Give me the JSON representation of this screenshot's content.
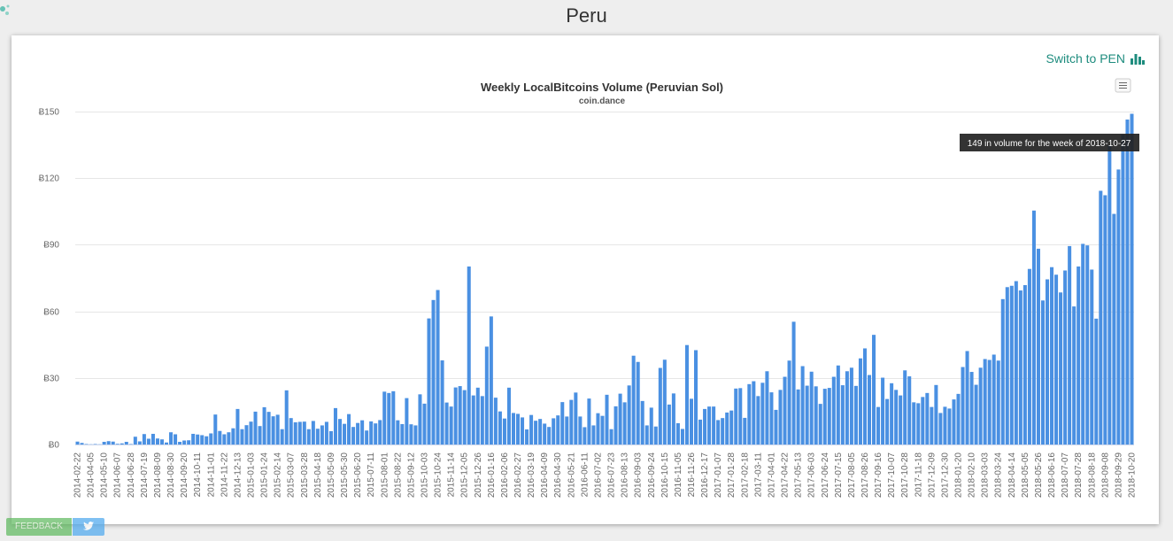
{
  "page": {
    "title": "Peru"
  },
  "controls": {
    "switch_label": "Switch to PEN",
    "feedback_label": "FEEDBACK"
  },
  "icons": {
    "switch": "bar-chart-icon",
    "menu": "hamburger-menu-icon",
    "twitter": "twitter-icon",
    "logo": "site-logo-icon"
  },
  "colors": {
    "bar": "#4a90e2",
    "accent": "#1e8c7e",
    "tooltip_bg": "#222222"
  },
  "tooltip": {
    "text": "149 in volume for the week of 2018-10-27"
  },
  "chart_data": {
    "type": "bar",
    "title": "Weekly LocalBitcoins Volume (Peruvian Sol)",
    "subtitle": "coin.dance",
    "xlabel": "",
    "ylabel": "",
    "ylim": [
      0,
      150
    ],
    "y_ticks": [
      0,
      30,
      60,
      90,
      120,
      150
    ],
    "y_tick_labels": [
      "Ƀ0",
      "Ƀ30",
      "Ƀ60",
      "Ƀ90",
      "Ƀ120",
      "Ƀ150"
    ],
    "grid": true,
    "start_date": "2014-02-22",
    "x_tick_labels": [
      "2014-02-22",
      "2014-04-05",
      "2014-05-10",
      "2014-06-07",
      "2014-06-28",
      "2014-07-19",
      "2014-08-09",
      "2014-08-30",
      "2014-09-20",
      "2014-10-11",
      "2014-11-01",
      "2014-11-22",
      "2014-12-13",
      "2015-01-03",
      "2015-01-24",
      "2015-02-14",
      "2015-03-07",
      "2015-03-28",
      "2015-04-18",
      "2015-05-09",
      "2015-05-30",
      "2015-06-20",
      "2015-07-11",
      "2015-08-01",
      "2015-08-22",
      "2015-09-12",
      "2015-10-03",
      "2015-10-24",
      "2015-11-14",
      "2015-12-05",
      "2015-12-26",
      "2016-01-16",
      "2016-02-06",
      "2016-02-27",
      "2016-03-19",
      "2016-04-09",
      "2016-04-30",
      "2016-05-21",
      "2016-06-11",
      "2016-07-02",
      "2016-07-23",
      "2016-08-13",
      "2016-09-03",
      "2016-09-24",
      "2016-10-15",
      "2016-11-05",
      "2016-11-26",
      "2016-12-17",
      "2017-01-07",
      "2017-01-28",
      "2017-02-18",
      "2017-03-11",
      "2017-04-01",
      "2017-04-22",
      "2017-05-13",
      "2017-06-03",
      "2017-06-24",
      "2017-07-15",
      "2017-08-05",
      "2017-08-26",
      "2017-09-16",
      "2017-10-07",
      "2017-10-28",
      "2017-11-18",
      "2017-12-09",
      "2017-12-30",
      "2018-01-20",
      "2018-02-10",
      "2018-03-03",
      "2018-03-24",
      "2018-04-14",
      "2018-05-05",
      "2018-05-26",
      "2018-06-16",
      "2018-07-07",
      "2018-07-28",
      "2018-08-18",
      "2018-09-08",
      "2018-09-29",
      "2018-10-20"
    ],
    "values": [
      1.3,
      0.7,
      0.2,
      0.1,
      0.2,
      0.1,
      1.2,
      1.5,
      1.3,
      0.3,
      0.5,
      1.2,
      0.2,
      3.5,
      1.4,
      4.7,
      2.6,
      4.8,
      2.7,
      2.3,
      0.9,
      5.5,
      4.6,
      1.2,
      1.8,
      1.9,
      4.8,
      4.5,
      4.2,
      3.7,
      5,
      13.5,
      6.1,
      4.6,
      5.5,
      7.3,
      16,
      6.9,
      8.7,
      10.3,
      14.8,
      8.3,
      16.8,
      14.7,
      12.7,
      13.4,
      6.9,
      24.4,
      11.9,
      10,
      10.2,
      10.3,
      6.9,
      10.6,
      7.1,
      8.6,
      10.2,
      6,
      16.4,
      11.5,
      9.3,
      13.7,
      7.9,
      9.7,
      10.9,
      6.3,
      10.4,
      9.5,
      11,
      23.8,
      23.2,
      24,
      10.9,
      9.2,
      20.9,
      9.1,
      8.6,
      22.6,
      18.4,
      56.8,
      65.1,
      69.6,
      37.9,
      18.9,
      17.1,
      25.7,
      26.3,
      24.5,
      80.2,
      22.1,
      25.6,
      21.8,
      44.1,
      57.7,
      21.1,
      14.9,
      11.7,
      25.6,
      14.2,
      13.8,
      12.2,
      6.8,
      13.3,
      10.7,
      11.5,
      9.4,
      7.9,
      11.8,
      13.1,
      19.1,
      12.6,
      20.1,
      23.4,
      12.6,
      7.8,
      20.7,
      8.6,
      14.1,
      12.9,
      22.4,
      6.9,
      17.2,
      22.9,
      19,
      26.6,
      40,
      37.2,
      19.6,
      8.6,
      16.6,
      8.1,
      34.5,
      38.2,
      18,
      23,
      9.6,
      7,
      44.8,
      20.6,
      42.5,
      11.2,
      16,
      17.1,
      17.1,
      11,
      11.9,
      14.4,
      15.3,
      25.2,
      25.4,
      12,
      27.2,
      28.5,
      21.8,
      27.8,
      33,
      23.5,
      15.6,
      24.6,
      30.5,
      37.8,
      55.3,
      24.8,
      35.3,
      26.5,
      32.8,
      26.2,
      18.3,
      25.1,
      25.5,
      30.5,
      35.6,
      26.7,
      33,
      34.6,
      26.4,
      38.8,
      43.3,
      31.3,
      49.4,
      16.9,
      30.1,
      20.5,
      27.6,
      24.6,
      22.1,
      33.4,
      30.7,
      19,
      18.6,
      21.4,
      23.2,
      16.9,
      26.8,
      14.2,
      17,
      16.2,
      20.3,
      22.8,
      34.9,
      42.1,
      32.7,
      26.9,
      34.6,
      38.5,
      38.1,
      40.5,
      37.8,
      65.5,
      70.9,
      71.5,
      73.6,
      69.4,
      71.8,
      79.1,
      105.4,
      88.2,
      64.9,
      74.4,
      79.9,
      76.5,
      68.5,
      78.4,
      89.4,
      62.2,
      80.2,
      90.4,
      89.7,
      78.8,
      56.7,
      114.3,
      112.3,
      134.8,
      103.9,
      123.9,
      139.6,
      146.4,
      149
    ]
  }
}
